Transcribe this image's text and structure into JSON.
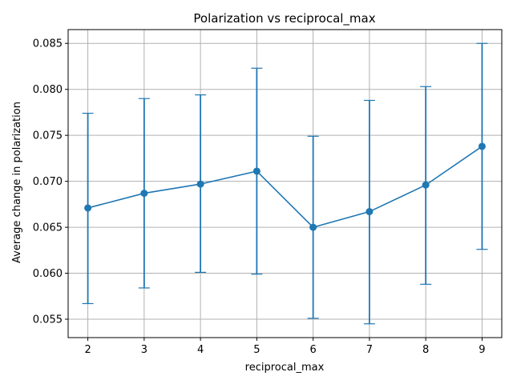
{
  "chart_data": {
    "type": "line",
    "title": "Polarization vs reciprocal_max",
    "xlabel": "reciprocal_max",
    "ylabel": "Average change in polarization",
    "x": [
      2,
      3,
      4,
      5,
      6,
      7,
      8,
      9
    ],
    "series": [
      {
        "values": [
          0.0671,
          0.0687,
          0.0697,
          0.0711,
          0.065,
          0.0667,
          0.0696,
          0.0738
        ],
        "err_low": [
          0.0567,
          0.0584,
          0.0601,
          0.0599,
          0.0551,
          0.0545,
          0.0588,
          0.0626
        ],
        "err_high": [
          0.0774,
          0.079,
          0.0794,
          0.0823,
          0.0749,
          0.0788,
          0.0803,
          0.085
        ],
        "color": "#1f77b4",
        "marker": "circle"
      }
    ],
    "xticks": [
      "2",
      "3",
      "4",
      "5",
      "6",
      "7",
      "8",
      "9"
    ],
    "yticks": [
      "0.055",
      "0.060",
      "0.065",
      "0.070",
      "0.075",
      "0.080",
      "0.085"
    ],
    "xlim": [
      1.65,
      9.35
    ],
    "ylim": [
      0.053,
      0.0865
    ],
    "grid": true,
    "grid_color": "#b0b0b0"
  }
}
